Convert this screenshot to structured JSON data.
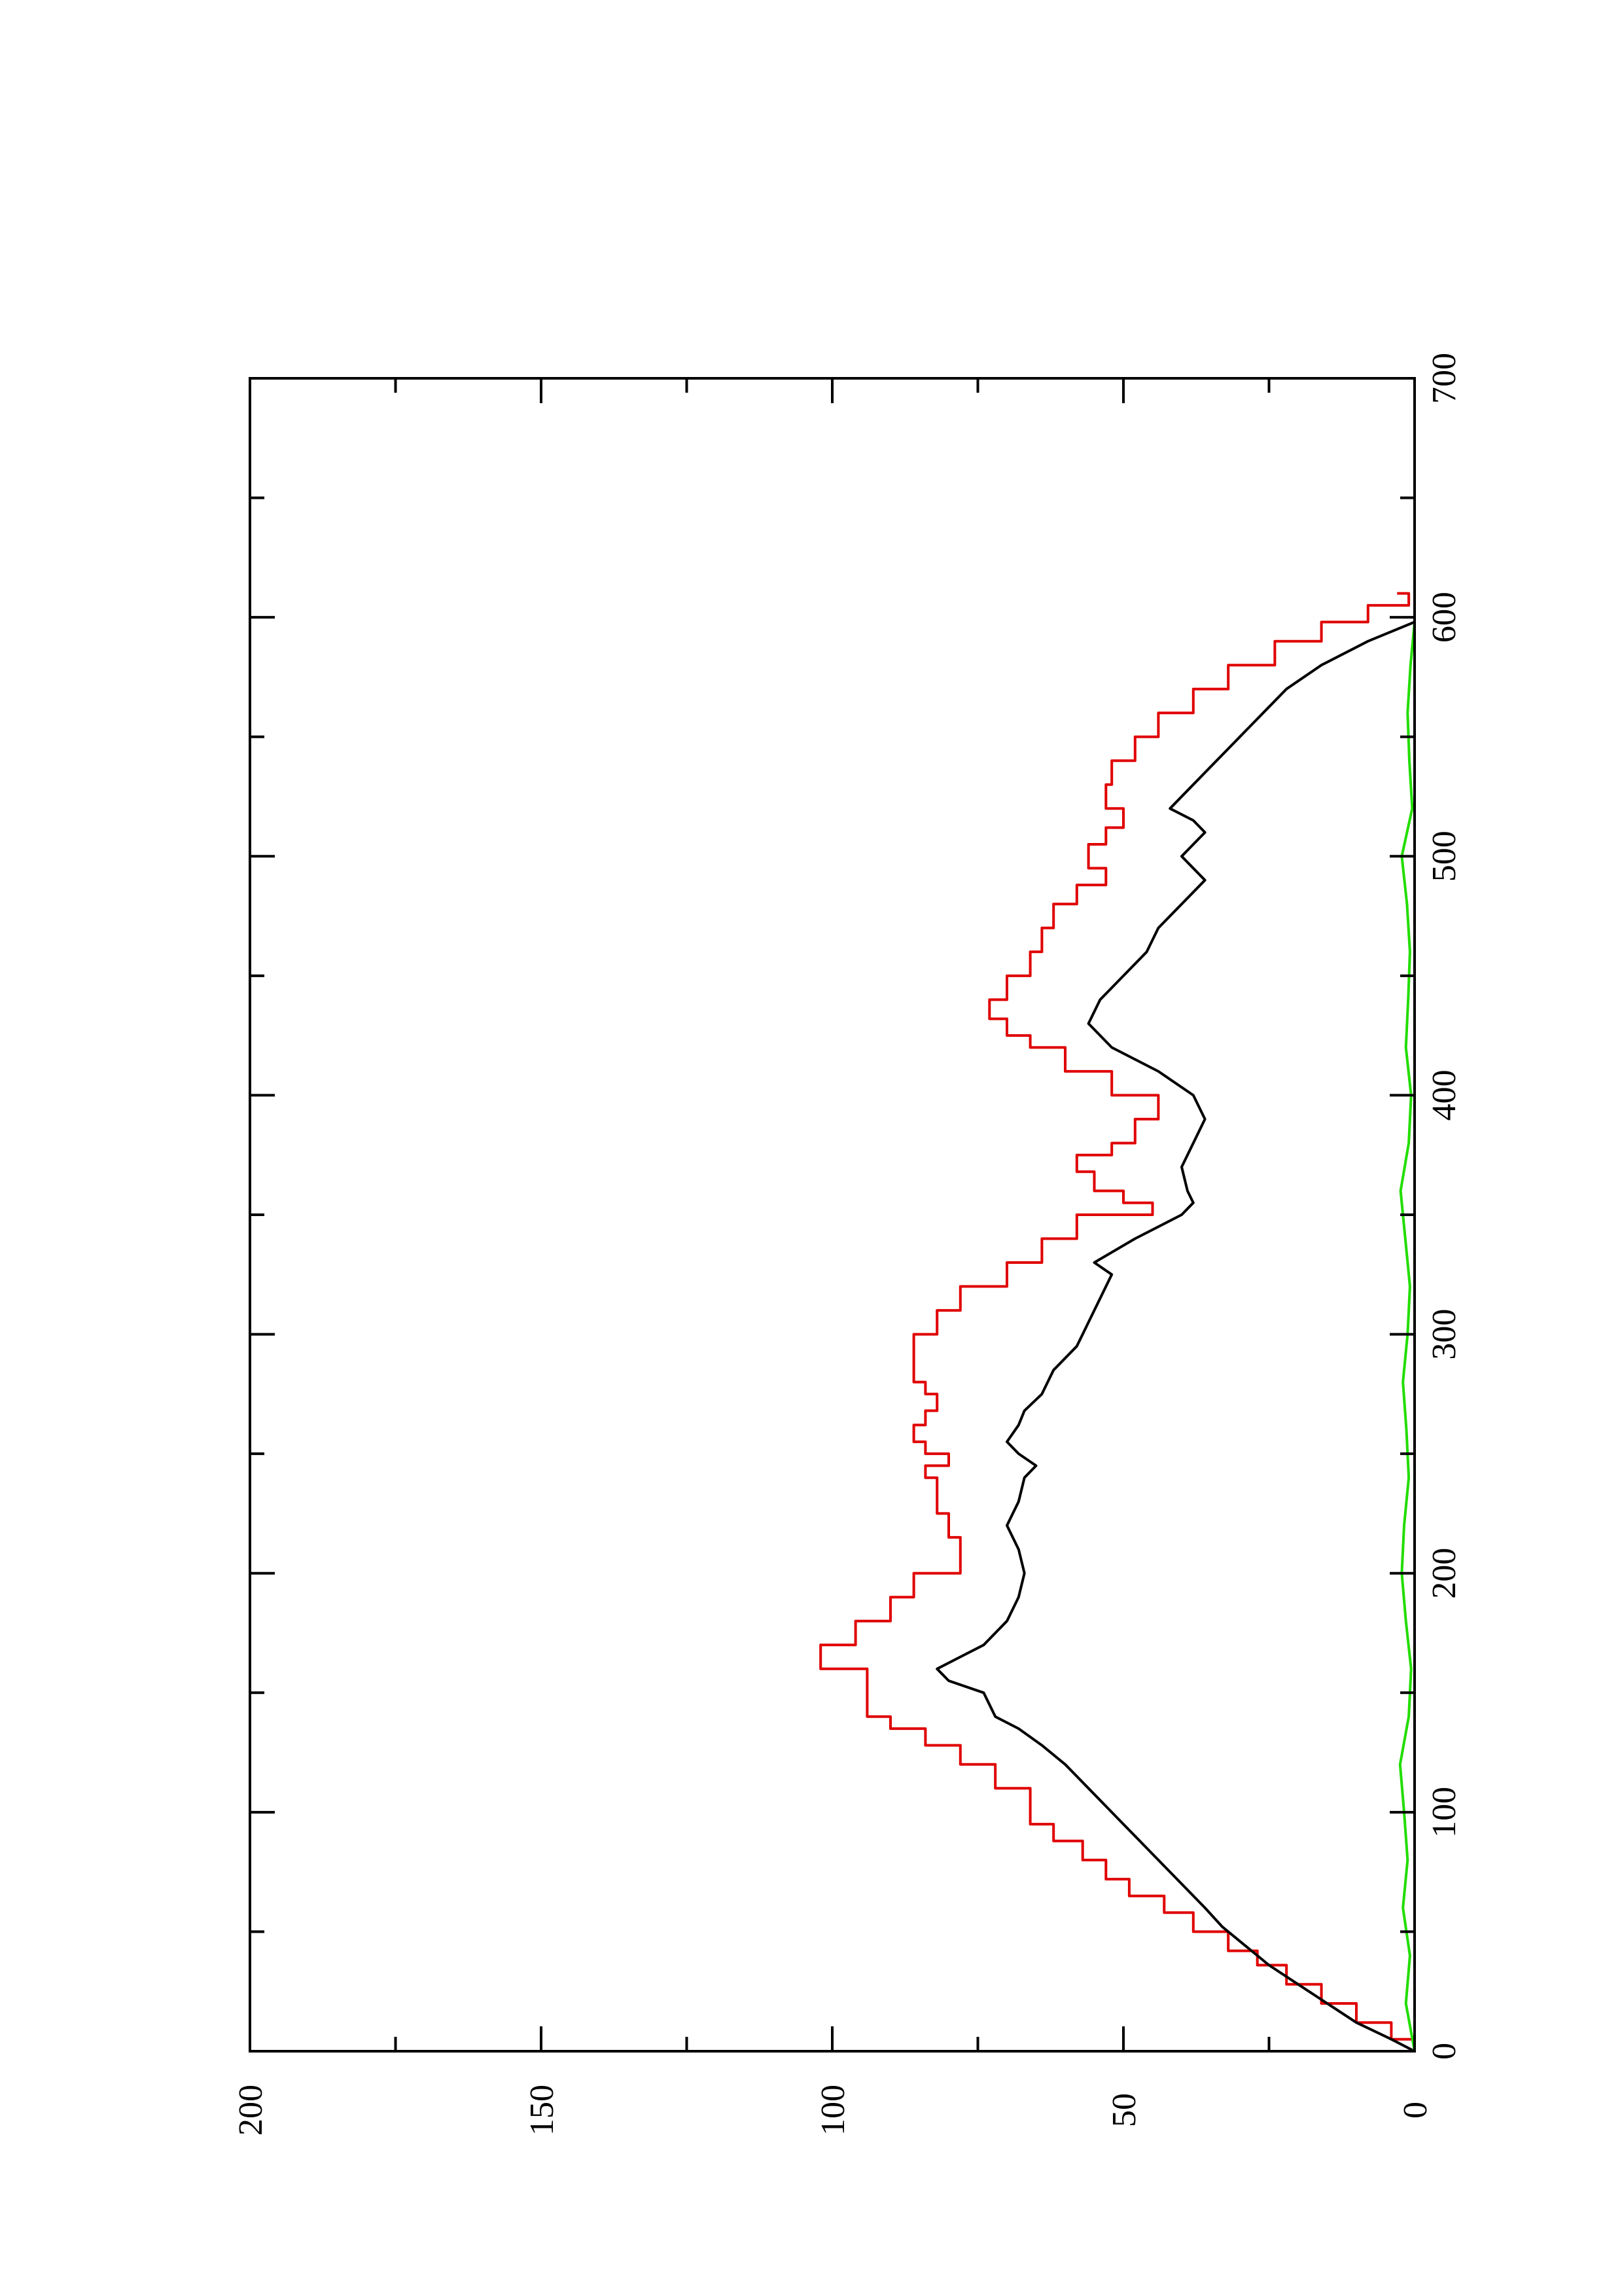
{
  "chart_data": {
    "type": "line",
    "orientation": "rotated-90-ccw",
    "title": "",
    "xlabel": "",
    "ylabel": "",
    "xlim": [
      0,
      700
    ],
    "ylim": [
      0,
      200
    ],
    "x_ticks": [
      0,
      100,
      200,
      300,
      400,
      500,
      600,
      700
    ],
    "x_tick_labels": [
      "0",
      "100",
      "200",
      "300",
      "400",
      "500",
      "600",
      "700"
    ],
    "y_ticks": [
      0,
      50,
      100,
      150,
      200
    ],
    "y_tick_labels": [
      "0",
      "50",
      "100",
      "150",
      "200"
    ],
    "grid": false,
    "legend": "none",
    "series": [
      {
        "color": "#e00000",
        "step": true,
        "x": [
          0,
          5,
          12,
          20,
          28,
          36,
          42,
          50,
          58,
          65,
          72,
          80,
          88,
          95,
          100,
          110,
          120,
          128,
          135,
          140,
          150,
          160,
          170,
          180,
          190,
          200,
          210,
          215,
          225,
          235,
          240,
          245,
          250,
          255,
          262,
          268,
          275,
          280,
          290,
          300,
          310,
          320,
          330,
          340,
          350,
          355,
          360,
          368,
          375,
          380,
          390,
          400,
          410,
          420,
          425,
          432,
          440,
          450,
          460,
          470,
          480,
          488,
          495,
          505,
          512,
          520,
          530,
          540,
          550,
          560,
          570,
          580,
          590,
          598,
          605,
          610
        ],
        "y": [
          0,
          4,
          10,
          16,
          22,
          27,
          32,
          38,
          43,
          49,
          53,
          57,
          62,
          66,
          66,
          72,
          78,
          84,
          90,
          94,
          94,
          102,
          96,
          90,
          86,
          78,
          78,
          80,
          82,
          82,
          84,
          80,
          84,
          86,
          84,
          82,
          84,
          86,
          86,
          82,
          78,
          70,
          64,
          58,
          45,
          50,
          55,
          58,
          52,
          48,
          44,
          52,
          60,
          66,
          70,
          73,
          70,
          66,
          64,
          62,
          58,
          53,
          56,
          53,
          50,
          53,
          52,
          48,
          44,
          38,
          32,
          24,
          16,
          8,
          1,
          3
        ]
      },
      {
        "color": "#000000",
        "step": false,
        "x": [
          0,
          5,
          12,
          20,
          28,
          36,
          44,
          52,
          60,
          70,
          80,
          90,
          100,
          110,
          120,
          128,
          135,
          140,
          150,
          155,
          160,
          165,
          170,
          180,
          190,
          200,
          210,
          220,
          230,
          240,
          245,
          250,
          255,
          262,
          268,
          275,
          285,
          295,
          305,
          315,
          325,
          330,
          340,
          350,
          355,
          360,
          370,
          380,
          390,
          400,
          410,
          420,
          430,
          440,
          450,
          460,
          470,
          480,
          490,
          500,
          505,
          510,
          515,
          520,
          530,
          540,
          550,
          560,
          570,
          580,
          590,
          598
        ],
        "y": [
          0,
          4,
          10,
          15,
          20,
          25,
          29,
          33,
          36,
          40,
          44,
          48,
          52,
          56,
          60,
          64,
          68,
          72,
          74,
          80,
          82,
          78,
          74,
          70,
          68,
          67,
          68,
          70,
          68,
          67,
          65,
          68,
          70,
          68,
          67,
          64,
          62,
          58,
          56,
          54,
          52,
          55,
          48,
          40,
          38,
          39,
          40,
          38,
          36,
          38,
          44,
          52,
          56,
          54,
          50,
          46,
          44,
          40,
          36,
          40,
          38,
          36,
          38,
          42,
          38,
          34,
          30,
          26,
          22,
          16,
          8,
          0
        ]
      },
      {
        "color": "#22dd00",
        "step": false,
        "x": [
          0,
          20,
          40,
          60,
          80,
          100,
          120,
          140,
          160,
          180,
          200,
          220,
          240,
          260,
          280,
          300,
          320,
          340,
          360,
          380,
          400,
          420,
          440,
          460,
          480,
          500,
          520,
          540,
          560,
          580,
          598
        ],
        "y": [
          0,
          1.5,
          0.8,
          2.0,
          1.2,
          1.8,
          2.5,
          1.0,
          0.6,
          1.5,
          2.2,
          1.8,
          1.0,
          1.4,
          2.0,
          1.2,
          0.8,
          1.6,
          2.4,
          1.0,
          0.6,
          1.5,
          1.1,
          0.8,
          1.3,
          2.2,
          0.4,
          0.9,
          1.2,
          0.7,
          0
        ]
      }
    ]
  }
}
